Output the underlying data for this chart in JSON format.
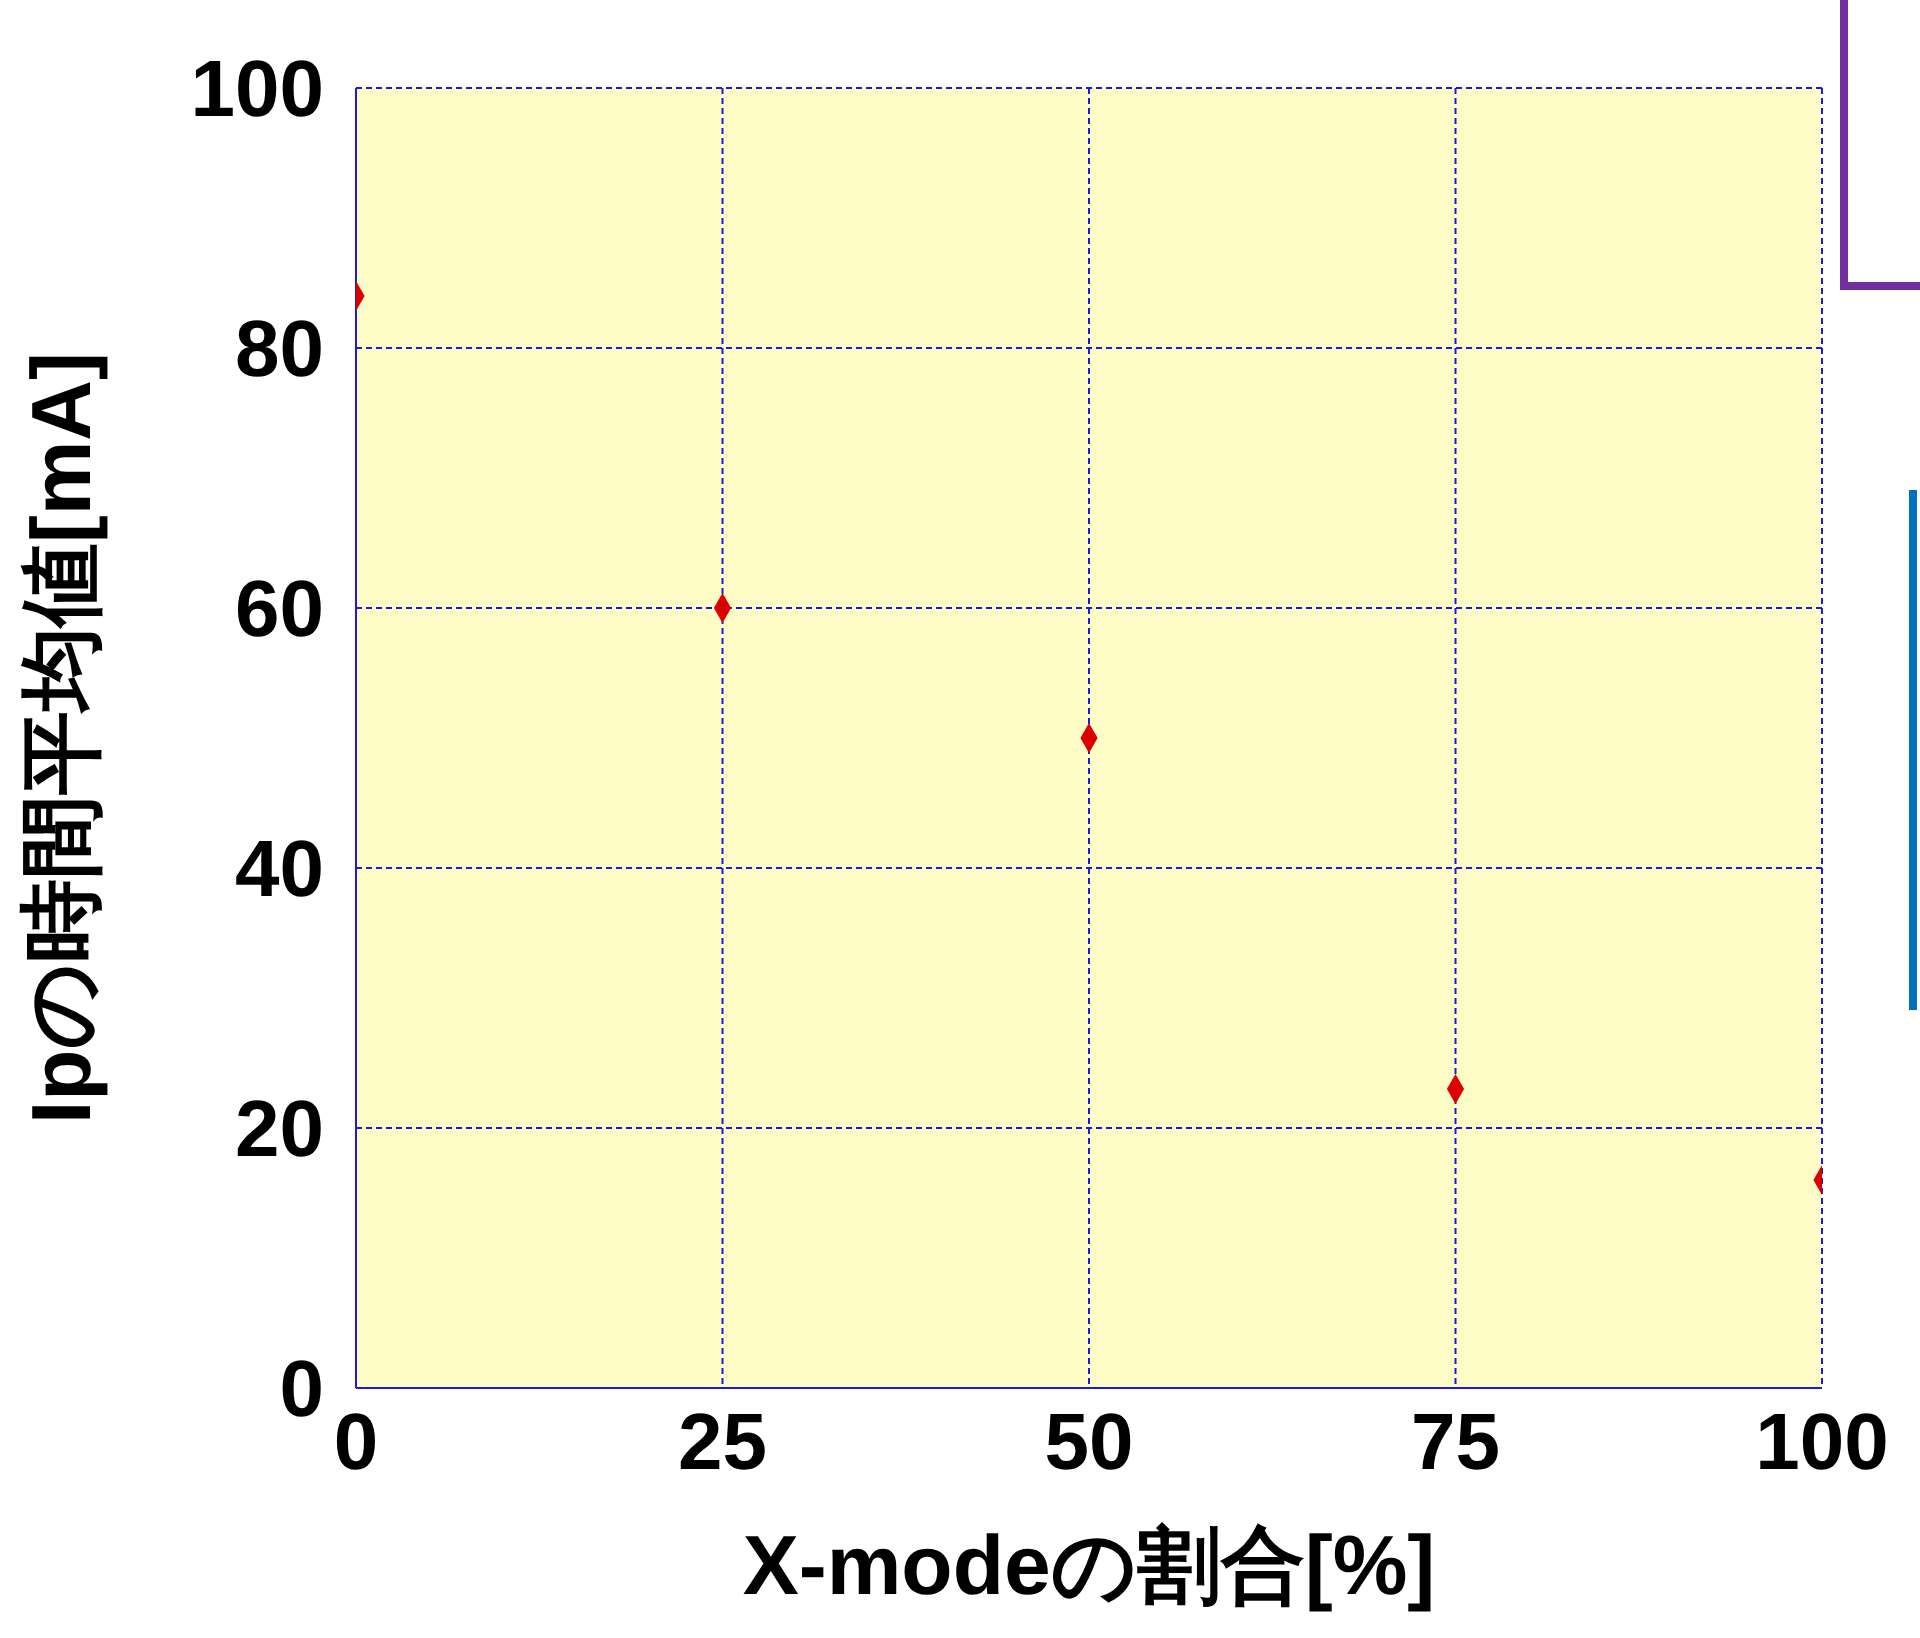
{
  "chart_data": {
    "type": "scatter",
    "xlabel": "X-modeの割合[%]",
    "ylabel": "Ipの時間平均値[mA]",
    "x": [
      0,
      25,
      50,
      75,
      100
    ],
    "series": [
      {
        "color": "#dd0000",
        "values": [
          84,
          60,
          50,
          23,
          16
        ]
      }
    ],
    "xlim": [
      0,
      100
    ],
    "xticks": [
      0,
      25,
      50,
      75,
      100
    ],
    "ylim": [
      0,
      100
    ],
    "yticks": [
      0,
      20,
      40,
      60,
      80,
      100
    ],
    "grid": true,
    "marker": "diamond"
  }
}
